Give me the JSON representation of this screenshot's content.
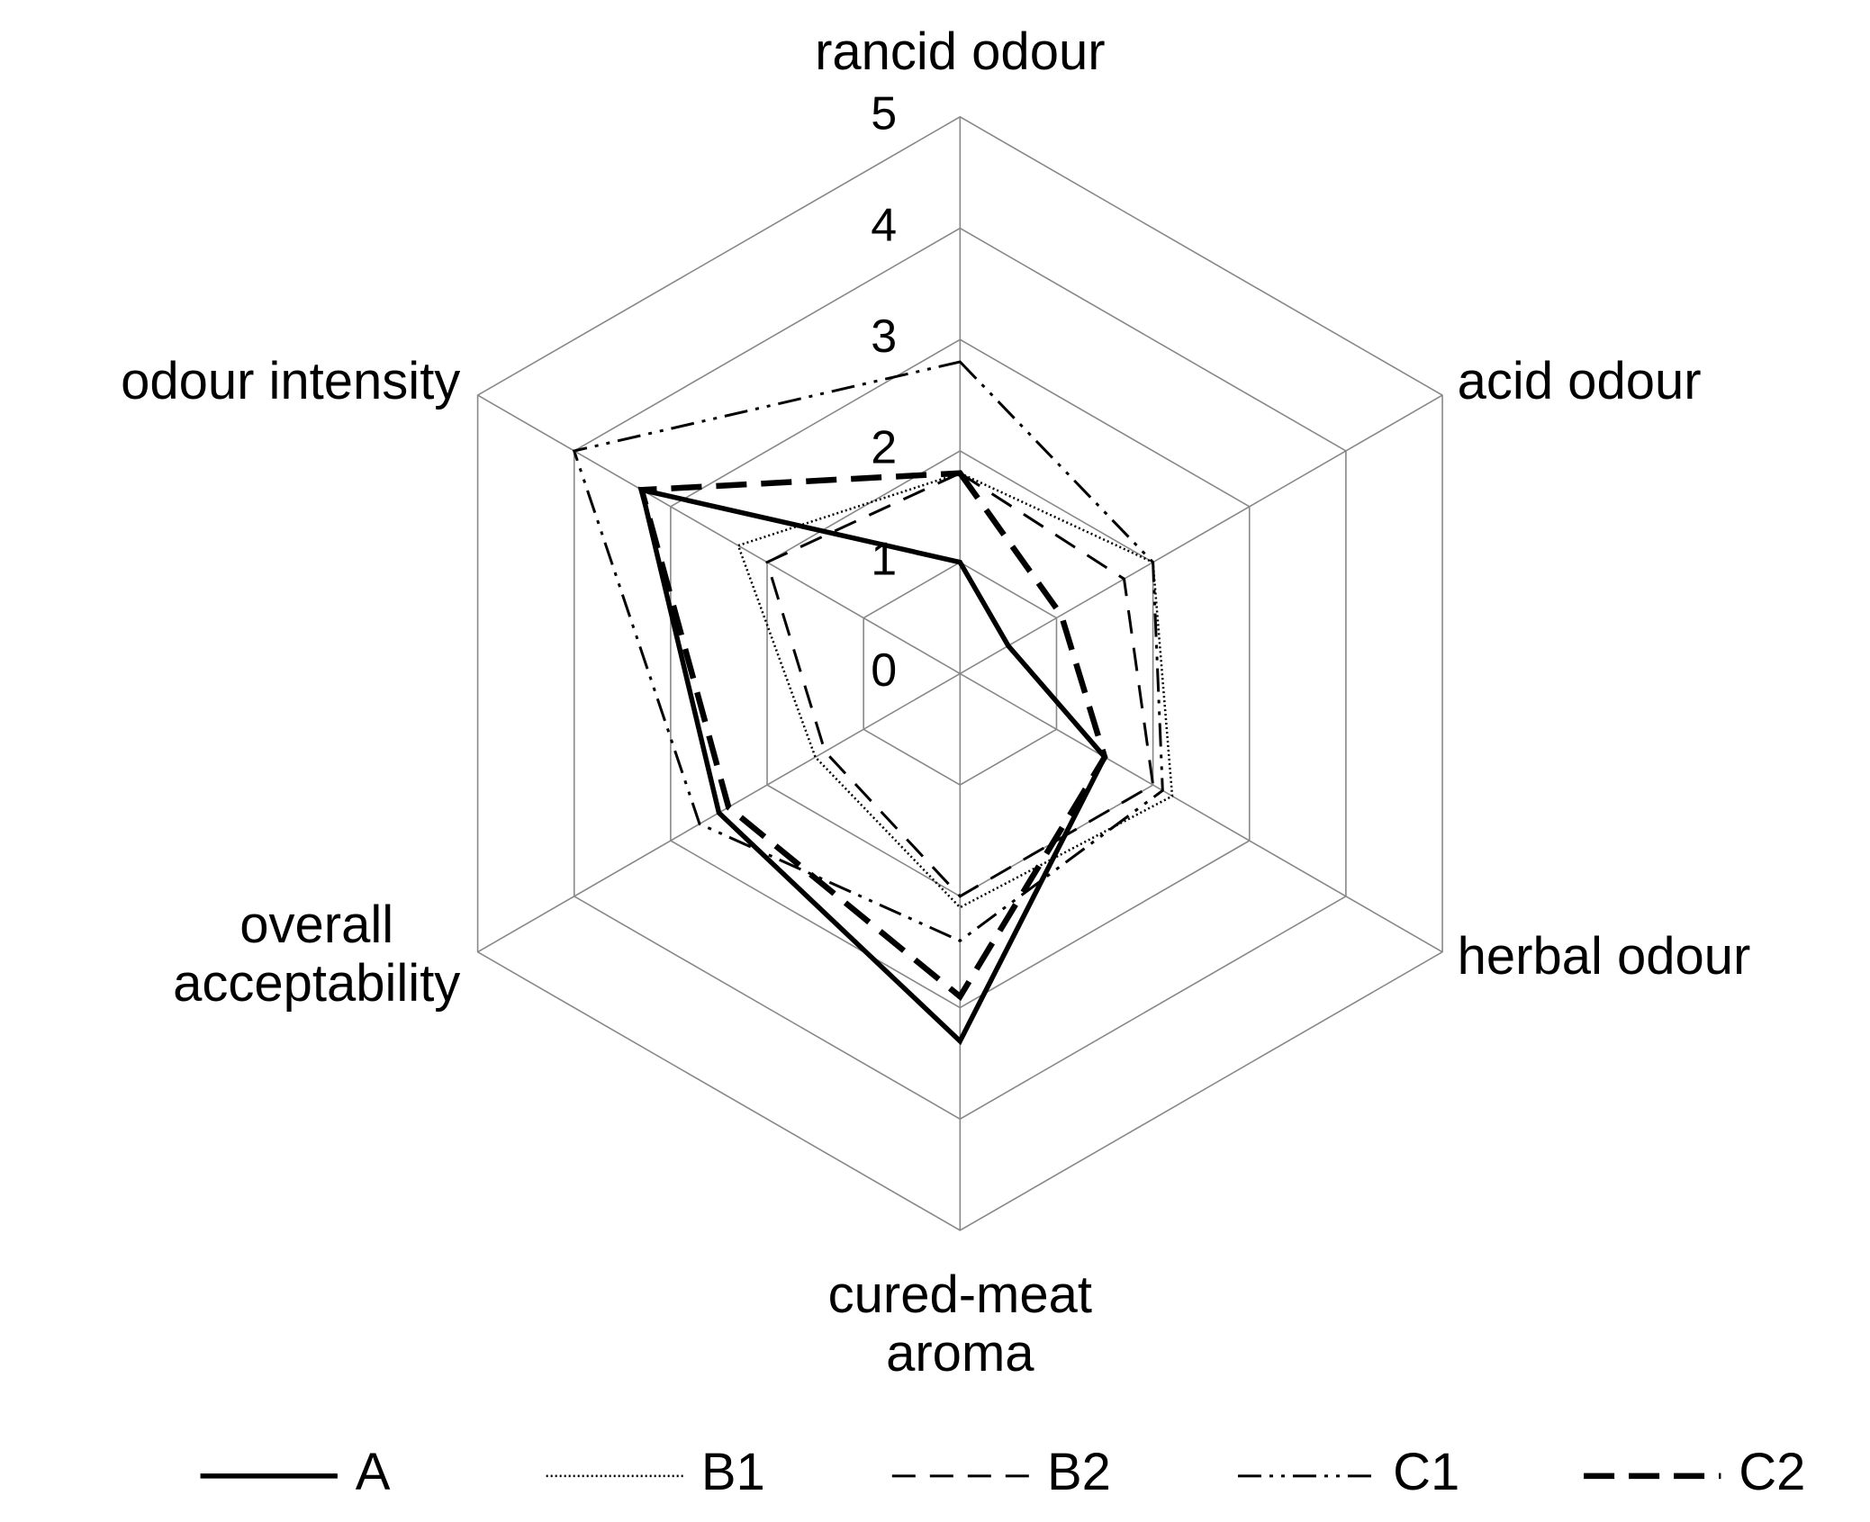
{
  "chart_data": {
    "type": "radar",
    "categories": [
      "rancid odour",
      "acid odour",
      "herbal odour",
      "cured-meat\naroma",
      "overall\nacceptability",
      "odour intensity"
    ],
    "rlim": [
      0,
      5
    ],
    "rticks": [
      0,
      1,
      2,
      3,
      4,
      5
    ],
    "grid": true,
    "legend": "bottom",
    "series": [
      {
        "name": "A",
        "color": "#000000",
        "dash": "solid",
        "values": [
          1.0,
          0.5,
          1.5,
          3.3,
          2.5,
          3.3
        ]
      },
      {
        "name": "B1",
        "color": "#000000",
        "dash": "dotted",
        "values": [
          1.8,
          2.0,
          2.2,
          2.1,
          1.5,
          2.3
        ]
      },
      {
        "name": "B2",
        "color": "#000000",
        "dash": "dashed",
        "values": [
          1.8,
          1.7,
          2.0,
          2.0,
          1.4,
          2.0
        ]
      },
      {
        "name": "C1",
        "color": "#000000",
        "dash": "dash-dot-dot",
        "values": [
          2.8,
          2.0,
          2.1,
          2.4,
          2.7,
          4.0
        ]
      },
      {
        "name": "C2",
        "color": "#000000",
        "dash": "long-dash",
        "values": [
          1.8,
          1.05,
          1.5,
          2.9,
          2.4,
          3.3
        ]
      }
    ]
  }
}
